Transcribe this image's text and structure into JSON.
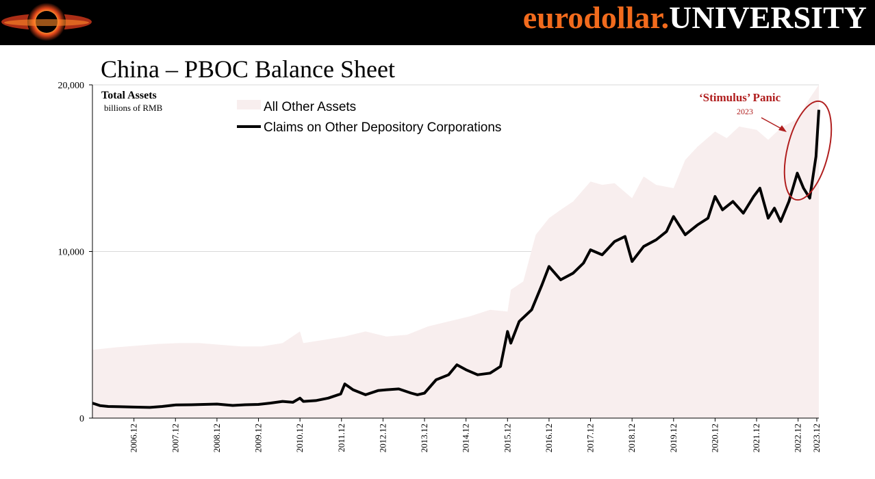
{
  "header": {
    "brand_part1": "eurodollar.",
    "brand_part2": "UNIVERSITY"
  },
  "colors": {
    "header_bg": "#000000",
    "brand_orange": "#f26b1d",
    "area_fill": "#f8eeee",
    "line": "#000000",
    "annotation": "#b01e1e"
  },
  "chart_data": {
    "type": "area",
    "title": "China – PBOC Balance Sheet",
    "subtitle": "Total Assets",
    "ylabel": "billions of RMB",
    "ylim": [
      0,
      20000
    ],
    "y_ticks": [
      0,
      10000,
      20000
    ],
    "y_tick_labels": [
      "0",
      "10,000",
      "20,000"
    ],
    "x_range": [
      2005.92,
      2023.42
    ],
    "x_ticks": [
      2006.92,
      2007.92,
      2008.92,
      2009.92,
      2010.92,
      2011.92,
      2012.92,
      2013.92,
      2014.92,
      2015.92,
      2016.92,
      2017.92,
      2018.92,
      2019.92,
      2020.92,
      2021.92,
      2022.92,
      2023.92
    ],
    "x_tick_labels": [
      "2006.12",
      "2007.12",
      "2008.12",
      "2009.12",
      "2010.12",
      "2011.12",
      "2012.12",
      "2013.12",
      "2014.12",
      "2015.12",
      "2016.12",
      "2017.12",
      "2018.12",
      "2019.12",
      "2020.12",
      "2021.12",
      "2022.12",
      "2023.12"
    ],
    "legend": [
      "All Other Assets",
      "Claims on Other Depository Corporations"
    ],
    "grid": "horizontal",
    "series": [
      {
        "name": "All Other Assets",
        "kind": "area",
        "x": [
          2005.92,
          2006.5,
          2007.0,
          2007.5,
          2008.0,
          2008.5,
          2009.0,
          2009.5,
          2010.0,
          2010.5,
          2010.92,
          2011.0,
          2011.5,
          2012.0,
          2012.5,
          2013.0,
          2013.5,
          2014.0,
          2014.5,
          2015.0,
          2015.5,
          2015.92,
          2016.0,
          2016.3,
          2016.6,
          2016.92,
          2017.2,
          2017.5,
          2017.92,
          2018.2,
          2018.5,
          2018.92,
          2019.2,
          2019.5,
          2019.92,
          2020.2,
          2020.5,
          2020.92,
          2021.2,
          2021.5,
          2021.92,
          2022.2,
          2022.5,
          2022.92,
          2023.2,
          2023.42
        ],
        "values": [
          4100,
          4250,
          4350,
          4450,
          4500,
          4500,
          4400,
          4300,
          4300,
          4500,
          5200,
          4500,
          4700,
          4900,
          5200,
          4900,
          5000,
          5500,
          5800,
          6100,
          6500,
          6400,
          7700,
          8200,
          11000,
          12000,
          12500,
          13000,
          14200,
          14000,
          14100,
          13200,
          14500,
          14000,
          13800,
          15500,
          16300,
          17200,
          16800,
          17500,
          17300,
          16700,
          17400,
          18000,
          19200,
          20000
        ]
      },
      {
        "name": "Claims on Other Depository Corporations",
        "kind": "line",
        "x": [
          2005.92,
          2006.1,
          2006.3,
          2006.6,
          2006.92,
          2007.3,
          2007.6,
          2007.92,
          2008.3,
          2008.6,
          2008.92,
          2009.3,
          2009.6,
          2009.92,
          2010.2,
          2010.5,
          2010.75,
          2010.92,
          2011.0,
          2011.3,
          2011.6,
          2011.9,
          2012.0,
          2012.2,
          2012.5,
          2012.8,
          2013.0,
          2013.3,
          2013.6,
          2013.75,
          2013.92,
          2014.2,
          2014.5,
          2014.7,
          2014.92,
          2015.2,
          2015.5,
          2015.75,
          2015.92,
          2016.0,
          2016.2,
          2016.5,
          2016.75,
          2016.92,
          2017.2,
          2017.5,
          2017.75,
          2017.92,
          2018.2,
          2018.5,
          2018.75,
          2018.92,
          2019.2,
          2019.5,
          2019.75,
          2019.92,
          2020.2,
          2020.5,
          2020.75,
          2020.92,
          2021.1,
          2021.35,
          2021.6,
          2021.85,
          2022.0,
          2022.2,
          2022.35,
          2022.5,
          2022.7,
          2022.9,
          2023.05,
          2023.2,
          2023.35,
          2023.42
        ],
        "values": [
          900,
          750,
          700,
          680,
          660,
          640,
          700,
          790,
          800,
          820,
          840,
          760,
          800,
          820,
          900,
          1000,
          950,
          1200,
          1000,
          1050,
          1200,
          1450,
          2050,
          1700,
          1400,
          1650,
          1700,
          1750,
          1500,
          1400,
          1500,
          2300,
          2600,
          3200,
          2900,
          2600,
          2700,
          3100,
          5200,
          4500,
          5800,
          6500,
          8000,
          9100,
          8300,
          8700,
          9300,
          10100,
          9800,
          10600,
          10900,
          9400,
          10300,
          10700,
          11200,
          12100,
          11000,
          11600,
          12000,
          13300,
          12500,
          13000,
          12300,
          13300,
          13800,
          12000,
          12600,
          11800,
          13000,
          14700,
          13800,
          13200,
          15700,
          18500
        ]
      }
    ],
    "annotations": [
      {
        "text": "‘Stimulus’ Panic",
        "subtext": "2023"
      }
    ]
  }
}
